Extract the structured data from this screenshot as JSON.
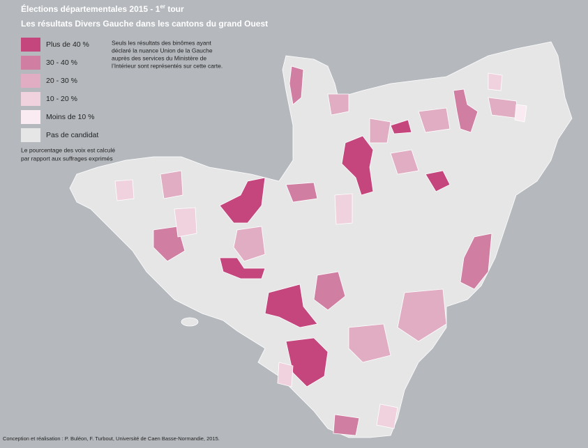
{
  "header": {
    "title": {
      "main": "Élections départementales 2015 - 1",
      "sup": "er",
      "rest": " tour"
    },
    "subtitle": "Les résultats Divers Gauche dans les cantons du grand Ouest"
  },
  "legend": {
    "items": [
      {
        "label": "Plus de 40 %",
        "color": "#c4467d"
      },
      {
        "label": "30 - 40 %",
        "color": "#d07ea2"
      },
      {
        "label": "20 - 30 %",
        "color": "#e0adc3"
      },
      {
        "label": "10 - 20 %",
        "color": "#f0d1de"
      },
      {
        "label": "Moins de 10 %",
        "color": "#f9ebf1"
      },
      {
        "label": "Pas de candidat",
        "color": "#e6e6e6"
      }
    ]
  },
  "note": {
    "lines": [
      "Seuls les résultats des binômes ayant",
      "déclaré la nuance Union de la Gauche",
      "auprès des services du Ministère de",
      "l’Intérieur sont représentés sur cette carte."
    ]
  },
  "calc_note": {
    "lines": [
      "Le pourcentage des voix est calculé",
      "par rapport aux suffrages exprimés"
    ]
  },
  "credit": "Conception et réalisation : P. Buléon, F. Turbout, Université de Caen Basse-Normandie, 2015."
}
